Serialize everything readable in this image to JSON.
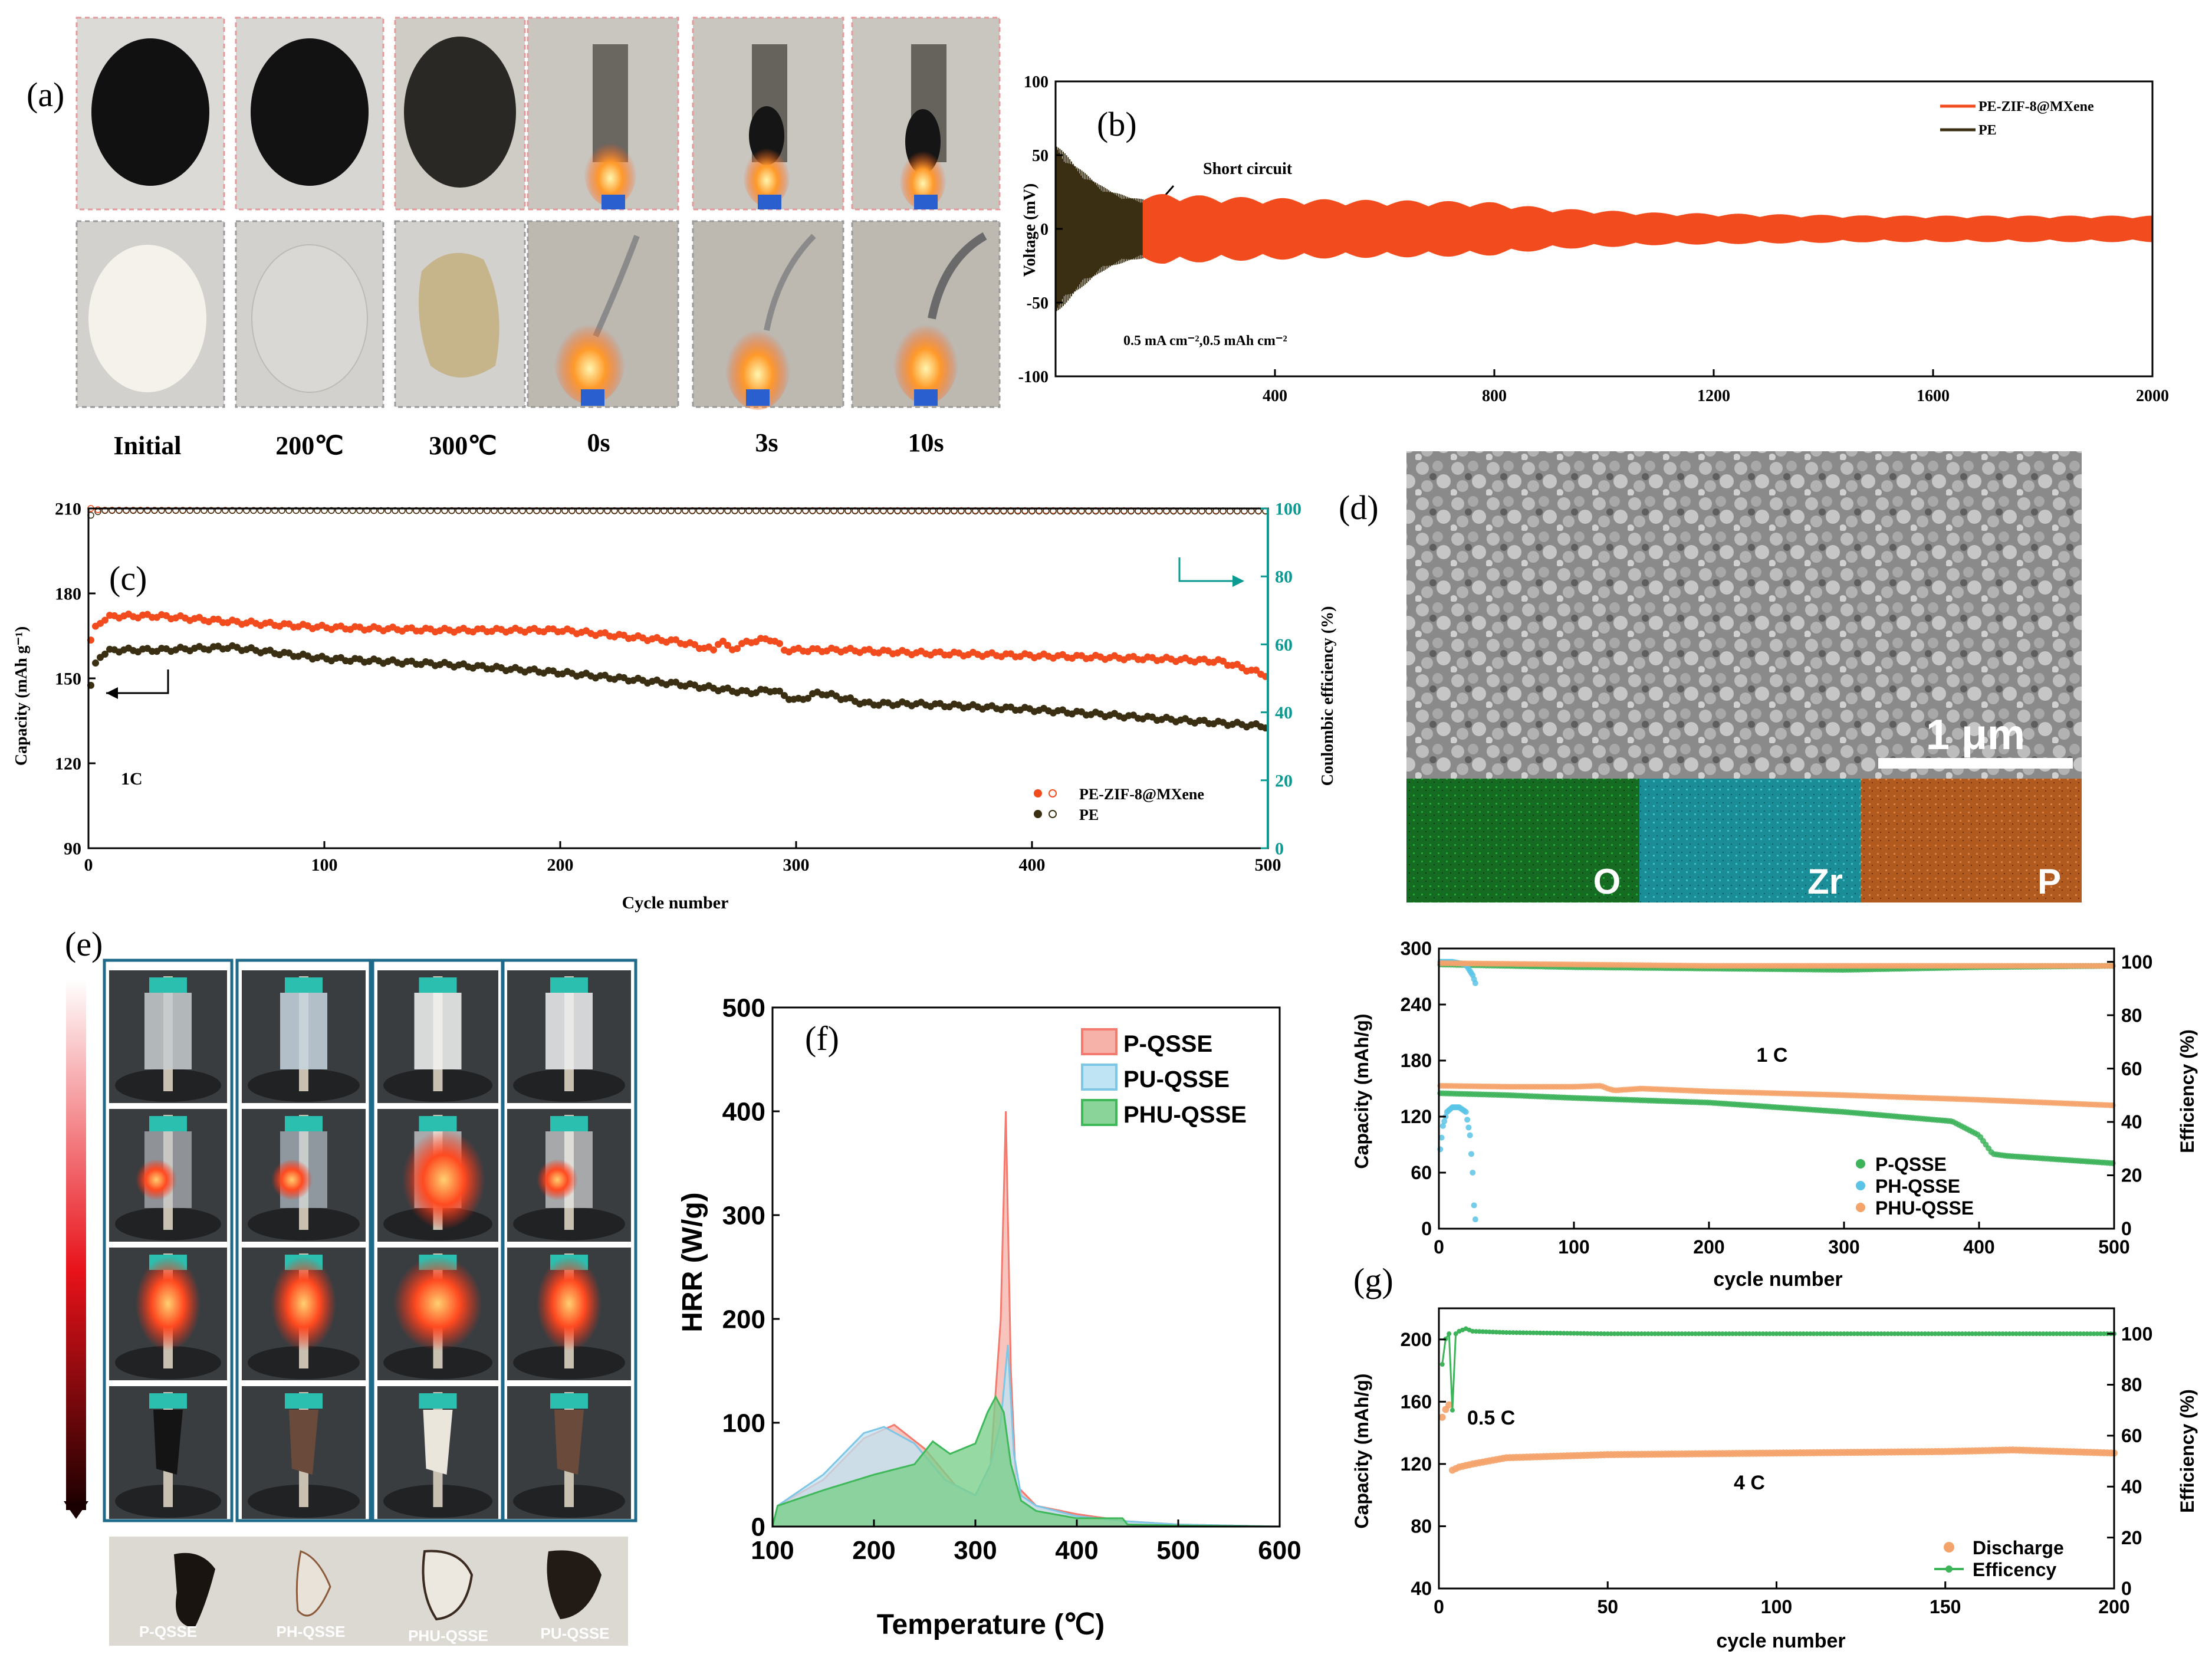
{
  "panel_labels": {
    "a": "(a)",
    "b": "(b)",
    "c": "(c)",
    "d": "(d)",
    "e": "(e)",
    "f": "(f)",
    "g": "(g)"
  },
  "panel_a": {
    "labels": [
      "Initial",
      "200℃",
      "300℃",
      "0s",
      "3s",
      "10s"
    ]
  },
  "panel_d": {
    "scale_bar": "1 μm",
    "maps": [
      "O",
      "Zr",
      "P"
    ],
    "colors": {
      "O": "#1c6b24",
      "Zr": "#1b8f98",
      "P": "#b35a1f"
    }
  },
  "panel_e": {
    "labels": [
      "P-QSSE",
      "PH-QSSE",
      "PHU-QSSE",
      "PU-QSSE"
    ]
  },
  "colors": {
    "orange": "#f24c1e",
    "dark": "#3a2f12",
    "teal": "#0a9a92",
    "p_qsse_f": "#f27a6e",
    "pu_qsse_f": "#7ec6e6",
    "phu_qsse_f": "#3fb85a",
    "g_green": "#3db35a",
    "g_blue": "#5bc4e6",
    "g_orange": "#f4a36a"
  },
  "chart_data": [
    {
      "id": "b",
      "type": "line",
      "title": "",
      "xlabel": "",
      "ylabel": "Voltage (mV)",
      "xlim": [
        0,
        2000
      ],
      "ylim": [
        -100,
        100
      ],
      "xticks": [
        400,
        800,
        1200,
        1600,
        2000
      ],
      "yticks": [
        -100,
        -50,
        0,
        50,
        100
      ],
      "legend": [
        "PE-ZIF-8@MXene",
        "PE"
      ],
      "annotations": [
        "Short circuit",
        "0.5 mA cm⁻²,0.5 mAh cm⁻²"
      ],
      "series": [
        {
          "name": "PE-ZIF-8@MXene",
          "x": [
            160,
            200,
            300,
            500,
            700,
            800,
            900,
            1100,
            1300,
            1500,
            1700,
            2000
          ],
          "amplitude": [
            22,
            24,
            22,
            20,
            19,
            18,
            14,
            11,
            10,
            9,
            9,
            9
          ]
        },
        {
          "name": "PE",
          "x": [
            0,
            20,
            40,
            60,
            80,
            100,
            130,
            160
          ],
          "amplitude": [
            58,
            50,
            42,
            36,
            30,
            26,
            22,
            20
          ]
        }
      ]
    },
    {
      "id": "c",
      "type": "scatter",
      "xlabel": "Cycle number",
      "ylabel": "Capacity (mAh g⁻¹)",
      "ylabel2": "Coulombic efficiency (%)",
      "xlim": [
        0,
        500
      ],
      "ylim": [
        90,
        210
      ],
      "ylim2": [
        0,
        100
      ],
      "xticks": [
        0,
        100,
        200,
        300,
        400,
        500
      ],
      "yticks": [
        90,
        120,
        150,
        180,
        210
      ],
      "yticks2": [
        0,
        20,
        40,
        60,
        80,
        100
      ],
      "annotations": [
        "1C"
      ],
      "legend": [
        "PE-ZIF-8@MXene",
        "PE"
      ],
      "series": [
        {
          "name": "PE-ZIF-8@MXene capacity",
          "x": [
            1,
            3,
            5,
            10,
            30,
            60,
            100,
            150,
            200,
            250,
            265,
            268,
            272,
            280,
            290,
            295,
            320,
            350,
            400,
            450,
            480,
            500
          ],
          "y": [
            163,
            168,
            170,
            172,
            172,
            170,
            168,
            167,
            167,
            163,
            160,
            164,
            160,
            163,
            164,
            160,
            160,
            159,
            158,
            157,
            156,
            151
          ]
        },
        {
          "name": "PE capacity",
          "x": [
            1,
            3,
            5,
            10,
            30,
            60,
            100,
            150,
            200,
            250,
            280,
            290,
            300,
            310,
            320,
            330,
            350,
            400,
            450,
            500
          ],
          "y": [
            147,
            155,
            158,
            160,
            160,
            161,
            157,
            155,
            152,
            148,
            145,
            146,
            142,
            145,
            143,
            141,
            141,
            139,
            136,
            133
          ]
        },
        {
          "name": "PE-ZIF-8@MXene CE",
          "x": [
            1,
            5,
            20,
            100,
            200,
            300,
            400,
            500
          ],
          "y": [
            100,
            99.5,
            99.5,
            99.4,
            99.4,
            99.4,
            99.4,
            99.3
          ]
        },
        {
          "name": "PE CE",
          "x": [
            1,
            5,
            20,
            100,
            200,
            300,
            400,
            500
          ],
          "y": [
            98,
            99.4,
            99.4,
            99.4,
            99.3,
            99.3,
            99.2,
            99.2
          ]
        }
      ]
    },
    {
      "id": "f",
      "type": "area",
      "xlabel": "Temperature (℃)",
      "ylabel": "HRR (W/g)",
      "xlim": [
        100,
        600
      ],
      "ylim": [
        0,
        500
      ],
      "xticks": [
        100,
        200,
        300,
        400,
        500,
        600
      ],
      "yticks": [
        0,
        100,
        200,
        300,
        400,
        500
      ],
      "legend": [
        "P-QSSE",
        "PU-QSSE",
        "PHU-QSSE"
      ],
      "series": [
        {
          "name": "P-QSSE",
          "x": [
            100,
            105,
            150,
            190,
            220,
            250,
            280,
            300,
            315,
            325,
            330,
            335,
            340,
            360,
            400,
            450,
            500,
            600
          ],
          "y": [
            0,
            20,
            45,
            85,
            98,
            75,
            40,
            30,
            60,
            200,
            400,
            150,
            40,
            20,
            12,
            5,
            2,
            0
          ]
        },
        {
          "name": "PU-QSSE",
          "x": [
            100,
            105,
            150,
            190,
            210,
            240,
            270,
            300,
            315,
            325,
            332,
            338,
            345,
            360,
            400,
            450,
            500,
            600
          ],
          "y": [
            0,
            20,
            50,
            90,
            96,
            80,
            45,
            30,
            60,
            100,
            175,
            70,
            30,
            20,
            10,
            5,
            2,
            0
          ]
        },
        {
          "name": "PHU-QSSE",
          "x": [
            100,
            105,
            150,
            200,
            240,
            258,
            275,
            300,
            312,
            320,
            328,
            335,
            345,
            360,
            400,
            445,
            450,
            500,
            600
          ],
          "y": [
            0,
            20,
            35,
            50,
            60,
            82,
            70,
            80,
            110,
            125,
            110,
            60,
            25,
            15,
            8,
            8,
            2,
            1,
            0
          ]
        }
      ]
    },
    {
      "id": "g-top",
      "type": "scatter",
      "xlabel": "cycle number",
      "ylabel": "Capacity (mAh/g)",
      "ylabel2": "Efficiency (%)",
      "xlim": [
        0,
        500
      ],
      "ylim": [
        0,
        300
      ],
      "ylim2": [
        0,
        105
      ],
      "xticks": [
        0,
        100,
        200,
        300,
        400,
        500
      ],
      "yticks": [
        0,
        60,
        120,
        180,
        240,
        300
      ],
      "yticks2": [
        0,
        20,
        40,
        60,
        80,
        100
      ],
      "annotations": [
        "1 C"
      ],
      "legend": [
        "P-QSSE",
        "PH-QSSE",
        "PHU-QSSE"
      ],
      "series": [
        {
          "name": "P-QSSE capacity",
          "x": [
            1,
            50,
            100,
            200,
            300,
            380,
            400,
            410,
            420,
            450,
            500
          ],
          "y": [
            145,
            143,
            140,
            135,
            125,
            115,
            100,
            80,
            78,
            75,
            70
          ]
        },
        {
          "name": "PH-QSSE capacity",
          "x": [
            1,
            3,
            6,
            10,
            15,
            20,
            23,
            25,
            26,
            27
          ],
          "y": [
            85,
            110,
            125,
            130,
            130,
            125,
            100,
            60,
            25,
            10
          ]
        },
        {
          "name": "PHU-QSSE capacity",
          "x": [
            1,
            50,
            100,
            120,
            125,
            130,
            150,
            200,
            300,
            400,
            500
          ],
          "y": [
            153,
            152,
            152,
            153,
            150,
            148,
            150,
            147,
            143,
            138,
            132
          ]
        },
        {
          "name": "P-QSSE efficiency",
          "x": [
            1,
            100,
            200,
            300,
            400,
            500
          ],
          "y": [
            99,
            98,
            97.5,
            97,
            98,
            98.5
          ]
        },
        {
          "name": "PH-QSSE efficiency",
          "x": [
            1,
            10,
            20,
            25,
            27
          ],
          "y": [
            100,
            100,
            99,
            95,
            92
          ]
        },
        {
          "name": "PHU-QSSE efficiency",
          "x": [
            1,
            100,
            200,
            300,
            400,
            500
          ],
          "y": [
            99.5,
            99,
            98.5,
            98.5,
            98.5,
            98.5
          ]
        }
      ]
    },
    {
      "id": "g-bottom",
      "type": "scatter",
      "xlabel": "cycle number",
      "ylabel": "Capacity (mAh/g)",
      "ylabel2": "Efficiency (%)",
      "xlim": [
        0,
        200
      ],
      "ylim": [
        40,
        220
      ],
      "ylim2": [
        0,
        110
      ],
      "xticks": [
        0,
        50,
        100,
        150,
        200
      ],
      "yticks": [
        40,
        80,
        120,
        160,
        200
      ],
      "yticks2": [
        0,
        20,
        40,
        60,
        80,
        100
      ],
      "annotations": [
        "0.5 C",
        "4 C"
      ],
      "legend": [
        "Discharge",
        "Efficency"
      ],
      "series": [
        {
          "name": "Discharge",
          "x": [
            1,
            2,
            3,
            4,
            5,
            6,
            8,
            10,
            20,
            50,
            100,
            150,
            170,
            200
          ],
          "y": [
            150,
            155,
            158,
            116,
            117,
            118,
            119,
            120,
            124,
            126,
            127,
            128,
            129,
            127
          ]
        },
        {
          "name": "Efficency",
          "x": [
            1,
            2,
            3,
            4,
            5,
            6,
            8,
            10,
            20,
            50,
            100,
            150,
            200
          ],
          "y": [
            88,
            98,
            100,
            70,
            100,
            101,
            102,
            101,
            100.5,
            100,
            100,
            100,
            100
          ]
        }
      ]
    }
  ]
}
